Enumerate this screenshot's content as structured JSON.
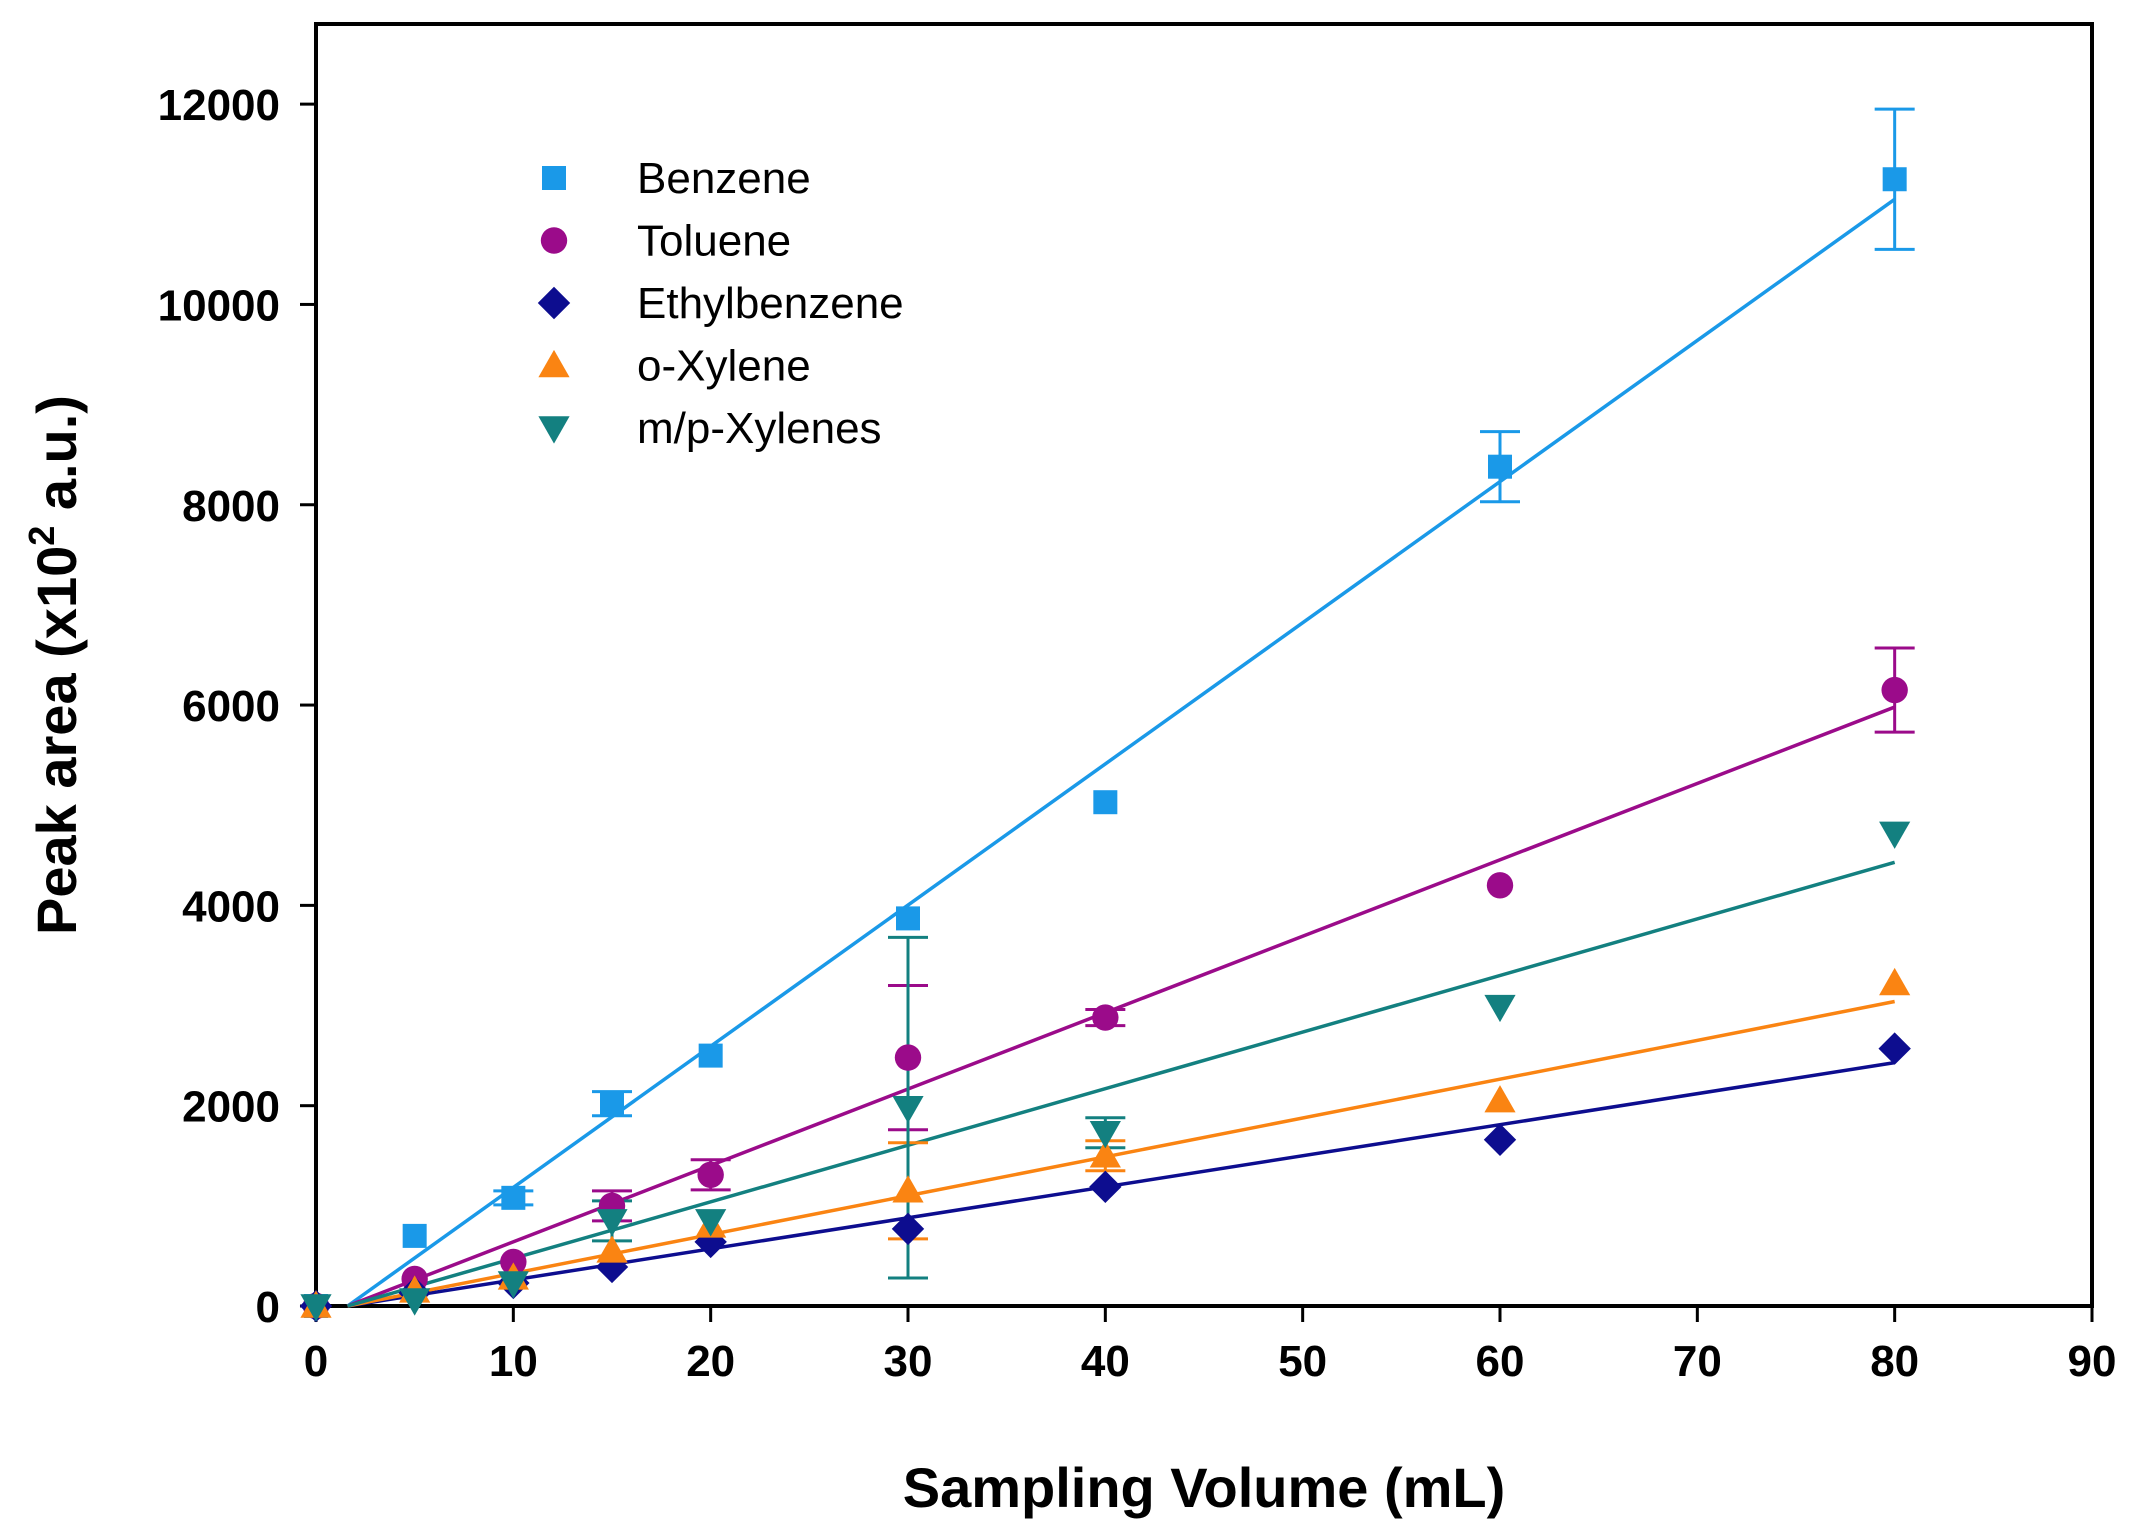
{
  "chart_data": {
    "type": "scatter",
    "title": "",
    "xlabel": "Sampling Volume (mL)",
    "ylabel_main": "Peak area (x10",
    "ylabel_sup": "2",
    "ylabel_tail": " a.u.)",
    "xlim": [
      0,
      90
    ],
    "ylim": [
      0,
      12800
    ],
    "x_ticks": [
      0,
      10,
      20,
      30,
      40,
      50,
      60,
      70,
      80,
      90
    ],
    "y_ticks": [
      0,
      2000,
      4000,
      6000,
      8000,
      10000,
      12000
    ],
    "x_tick_labels": [
      "0",
      "10",
      "20",
      "30",
      "40",
      "50",
      "60",
      "70",
      "80",
      "90"
    ],
    "y_tick_labels": [
      "0",
      "2000",
      "4000",
      "6000",
      "8000",
      "10000",
      "12000"
    ],
    "grid": false,
    "legend_position": "top-left",
    "series": [
      {
        "name": "Benzene",
        "color": "#1a99e8",
        "marker": "square",
        "x": [
          0,
          5,
          10,
          15,
          20,
          30,
          40,
          60,
          80
        ],
        "y": [
          0,
          700,
          1080,
          2020,
          2500,
          3870,
          5030,
          8380,
          11250
        ],
        "err": [
          0,
          0,
          70,
          120,
          0,
          0,
          0,
          350,
          700
        ],
        "fit": [
          [
            1.6,
            0
          ],
          [
            80,
            11050
          ]
        ]
      },
      {
        "name": "Toluene",
        "color": "#9b0b8a",
        "marker": "circle",
        "x": [
          0,
          5,
          10,
          15,
          20,
          30,
          40,
          60,
          80
        ],
        "y": [
          0,
          270,
          440,
          1000,
          1310,
          2480,
          2880,
          4200,
          6150
        ],
        "err": [
          0,
          0,
          0,
          150,
          150,
          720,
          80,
          0,
          420
        ],
        "fit": [
          [
            1.6,
            0
          ],
          [
            80,
            5980
          ]
        ]
      },
      {
        "name": "Ethylbenzene",
        "color": "#0d0d8f",
        "marker": "diamond",
        "x": [
          0,
          5,
          10,
          15,
          20,
          30,
          40,
          60,
          80
        ],
        "y": [
          0,
          130,
          230,
          390,
          640,
          770,
          1190,
          1660,
          2570
        ],
        "err": [
          0,
          0,
          0,
          0,
          0,
          0,
          0,
          0,
          0
        ],
        "fit": [
          [
            1.6,
            0
          ],
          [
            80,
            2430
          ]
        ]
      },
      {
        "name": "o-Xylene",
        "color": "#fa8412",
        "marker": "triangle-up",
        "x": [
          0,
          5,
          10,
          15,
          20,
          30,
          40,
          60,
          80
        ],
        "y": [
          0,
          150,
          280,
          550,
          800,
          1150,
          1500,
          2050,
          3220
        ],
        "err": [
          0,
          0,
          0,
          0,
          0,
          480,
          150,
          0,
          0
        ],
        "fit": [
          [
            1.6,
            0
          ],
          [
            80,
            3040
          ]
        ]
      },
      {
        "name": "m/p-Xylenes",
        "color": "#138080",
        "marker": "triangle-down",
        "x": [
          0,
          5,
          10,
          15,
          20,
          30,
          40,
          60,
          80
        ],
        "y": [
          0,
          60,
          230,
          850,
          850,
          1980,
          1730,
          2990,
          4720
        ],
        "err": [
          0,
          0,
          0,
          200,
          0,
          1700,
          150,
          0,
          0
        ],
        "fit": [
          [
            1.6,
            0
          ],
          [
            80,
            4430
          ]
        ]
      }
    ]
  }
}
